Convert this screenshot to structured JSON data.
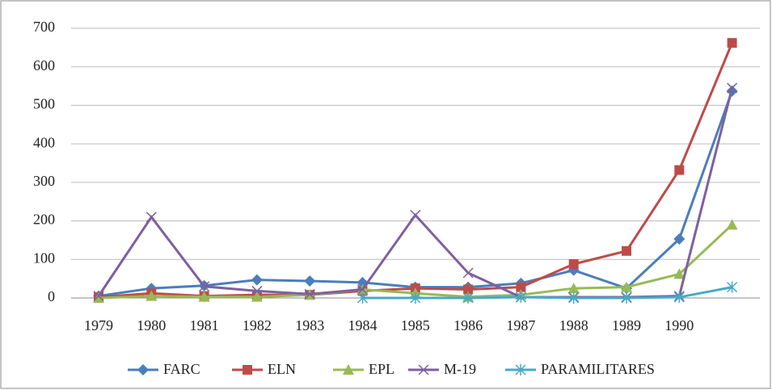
{
  "chart_data": {
    "type": "line",
    "categories": [
      "1979",
      "1980",
      "1981",
      "1982",
      "1983",
      "1984",
      "1985",
      "1986",
      "1987",
      "1988",
      "1989",
      "1990",
      null
    ],
    "series": [
      {
        "name": "FARC",
        "color": "#4a7ebb",
        "marker": "diamond",
        "values": [
          5,
          25,
          32,
          47,
          44,
          40,
          28,
          28,
          38,
          72,
          25,
          153,
          537
        ]
      },
      {
        "name": "ELN",
        "color": "#be4b48",
        "marker": "square",
        "values": [
          2,
          12,
          5,
          8,
          8,
          18,
          25,
          22,
          28,
          88,
          122,
          332,
          662
        ]
      },
      {
        "name": "EPL",
        "color": "#98b954",
        "marker": "triangle",
        "values": [
          0,
          5,
          3,
          3,
          8,
          22,
          12,
          3,
          8,
          25,
          28,
          62,
          190
        ]
      },
      {
        "name": "M-19",
        "color": "#7d60a0",
        "marker": "x",
        "values": [
          5,
          210,
          30,
          18,
          10,
          22,
          215,
          65,
          2,
          2,
          2,
          5,
          545
        ]
      },
      {
        "name": "PARAMILITARES",
        "color": "#46aac5",
        "marker": "asterisk",
        "values": [
          null,
          null,
          null,
          null,
          null,
          0,
          0,
          0,
          2,
          0,
          0,
          2,
          28
        ]
      }
    ],
    "ylim": [
      0,
      700
    ],
    "yticks": [
      0,
      100,
      200,
      300,
      400,
      500,
      600,
      700
    ],
    "grid": true,
    "legend": "bottom"
  }
}
